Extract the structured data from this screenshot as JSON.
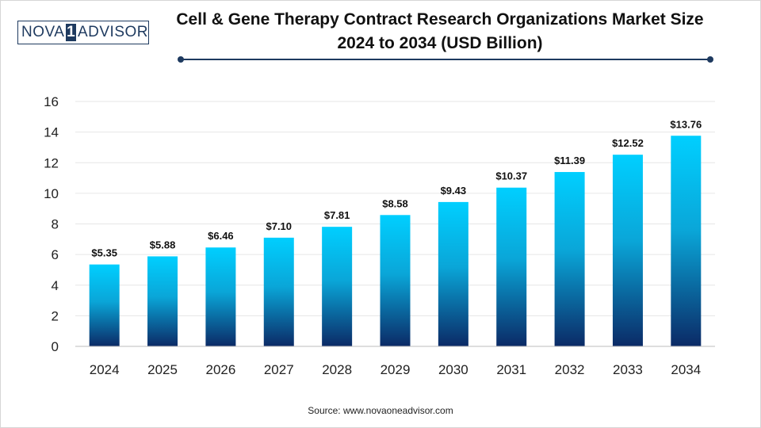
{
  "brand": {
    "logo_left": "NOVA",
    "logo_mid": "1",
    "logo_right": "ADVISOR"
  },
  "header": {
    "title_line1": "Cell & Gene Therapy Contract Research Organizations Market Size",
    "title_line2": "2024 to 2034 (USD Billion)"
  },
  "footer": {
    "source": "Source: www.novaoneadvisor.com"
  },
  "colors": {
    "bar_top": "#00cfff",
    "bar_bottom": "#0b2a66",
    "accent": "#1e3a5f",
    "grid": "#e6e6e6"
  },
  "chart_data": {
    "type": "bar",
    "title": "Cell & Gene Therapy Contract Research Organizations Market Size 2024 to 2034 (USD Billion)",
    "xlabel": "",
    "ylabel": "",
    "categories": [
      "2024",
      "2025",
      "2026",
      "2027",
      "2028",
      "2029",
      "2030",
      "2031",
      "2032",
      "2033",
      "2034"
    ],
    "values": [
      5.35,
      5.88,
      6.46,
      7.1,
      7.81,
      8.58,
      9.43,
      10.37,
      11.39,
      12.52,
      13.76
    ],
    "data_labels": [
      "$5.35",
      "$5.88",
      "$6.46",
      "$7.10",
      "$7.81",
      "$8.58",
      "$9.43",
      "$10.37",
      "$11.39",
      "$12.52",
      "$13.76"
    ],
    "ylim": [
      0,
      16
    ],
    "yticks": [
      0,
      2,
      4,
      6,
      8,
      10,
      12,
      14,
      16
    ],
    "grid": true,
    "legend": "none"
  }
}
